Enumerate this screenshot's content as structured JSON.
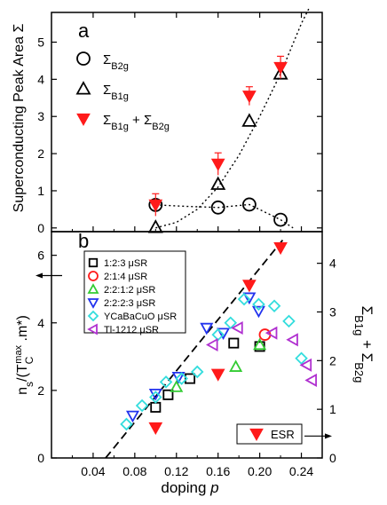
{
  "chart_data": [
    {
      "panel": "a",
      "type": "scatter",
      "panel_label": "a",
      "ylabel": "Superconducting Peak Area Σ",
      "xlim": [
        0,
        0.26
      ],
      "ylim": [
        -0.1,
        5.8
      ],
      "yticks": [
        0,
        1,
        2,
        3,
        4,
        5
      ],
      "series": [
        {
          "name": "Σ_B2g",
          "label": {
            "main": "Σ",
            "sub": "B2g"
          },
          "marker": "circle",
          "color": "#000000",
          "x": [
            0.1,
            0.16,
            0.19,
            0.22
          ],
          "y": [
            0.62,
            0.55,
            0.63,
            0.22
          ]
        },
        {
          "name": "Σ_B1g",
          "label": {
            "main": "Σ",
            "sub": "B1g"
          },
          "marker": "triangle-up",
          "color": "#000000",
          "x": [
            0.1,
            0.16,
            0.19,
            0.22
          ],
          "y": [
            0.02,
            1.18,
            2.88,
            4.15
          ]
        },
        {
          "name": "Σ_B1g + Σ_B2g",
          "label": {
            "main": "Σ",
            "sub": "B1g",
            "plus": "+ Σ",
            "sub2": "B2g"
          },
          "marker": "triangle-down-filled",
          "color": "#ff1a1a",
          "x": [
            0.1,
            0.16,
            0.19,
            0.22
          ],
          "y": [
            0.62,
            1.72,
            3.55,
            4.32
          ],
          "yerr": [
            0.3,
            0.3,
            0.25,
            0.3
          ]
        }
      ],
      "guides": [
        {
          "style": "dotted",
          "x": [
            0.1,
            0.13,
            0.16,
            0.19,
            0.22,
            0.232
          ],
          "y": [
            0.62,
            0.58,
            0.55,
            0.63,
            0.22,
            0.0
          ]
        },
        {
          "style": "dotted",
          "x": [
            0.1,
            0.12,
            0.14,
            0.16,
            0.18,
            0.2,
            0.22,
            0.24,
            0.248
          ],
          "y": [
            0.0,
            0.15,
            0.5,
            1.1,
            1.95,
            3.0,
            4.15,
            5.5,
            5.95
          ]
        }
      ]
    },
    {
      "panel": "b",
      "type": "scatter",
      "panel_label": "b",
      "xlabel": "doping p",
      "ylabel_left": "n_s/(T_C^max .m*)",
      "ylabel_right": "Σ_B1g + Σ_B2g",
      "xlim": [
        0,
        0.26
      ],
      "ylim_left": [
        0,
        6.7
      ],
      "ylim_right": [
        0,
        4.65
      ],
      "xticks": [
        "0.04",
        "0.08",
        "0.12",
        "0.16",
        "0.20",
        "0.24"
      ],
      "xtick_values": [
        0.04,
        0.08,
        0.12,
        0.16,
        0.2,
        0.24
      ],
      "yticks_left": [
        0,
        2,
        4,
        6
      ],
      "yticks_right": [
        0,
        1,
        2,
        3,
        4
      ],
      "legend_position": "top-left",
      "series": [
        {
          "name": "1:2:3 μSR",
          "legend": "1:2:3   μSR",
          "marker": "square",
          "color": "#000000",
          "x": [
            0.1,
            0.112,
            0.133,
            0.175,
            0.2
          ],
          "y": [
            1.5,
            1.87,
            2.35,
            3.4,
            3.3
          ]
        },
        {
          "name": "2:1:4 μSR",
          "legend": "2:1:4   μSR",
          "marker": "circle",
          "color": "#ff1a1a",
          "x": [
            0.205
          ],
          "y": [
            3.65
          ]
        },
        {
          "name": "2:2:1:2 μSR",
          "legend": "2:2:1:2 μSR",
          "marker": "triangle-up",
          "color": "#33cc33",
          "x": [
            0.12,
            0.177,
            0.2
          ],
          "y": [
            2.1,
            2.7,
            3.35
          ]
        },
        {
          "name": "2:2:2:3 μSR",
          "legend": "2:2:2:3 μSR",
          "marker": "triangle-down",
          "color": "#2233ee",
          "x": [
            0.078,
            0.1,
            0.122,
            0.149,
            0.165,
            0.19,
            0.199
          ],
          "y": [
            1.25,
            1.9,
            2.4,
            3.85,
            3.7,
            4.75,
            4.35
          ]
        },
        {
          "name": "YCaBaCuO μSR",
          "legend": "YCaBaCuO μSR",
          "marker": "diamond",
          "color": "#33dddd",
          "x": [
            0.072,
            0.087,
            0.1,
            0.11,
            0.125,
            0.14,
            0.16,
            0.172,
            0.185,
            0.199,
            0.214,
            0.228,
            0.24
          ],
          "y": [
            1.0,
            1.55,
            1.8,
            2.25,
            2.35,
            2.55,
            3.65,
            4.0,
            4.7,
            4.55,
            4.5,
            4.05,
            2.95
          ]
        },
        {
          "name": "Tl-1212 μSR",
          "legend": "Tl-1212 μSR",
          "marker": "triangle-left",
          "color": "#b030d0",
          "x": [
            0.155,
            0.179,
            0.212,
            0.232,
            0.245,
            0.25
          ],
          "y": [
            3.35,
            3.85,
            3.7,
            3.5,
            2.75,
            2.3
          ]
        },
        {
          "name": "ESR",
          "legend": "ESR",
          "marker": "triangle-down-filled",
          "color": "#ff1a1a",
          "axis": "right",
          "x": [
            0.1,
            0.16,
            0.19,
            0.22
          ],
          "y": [
            0.62,
            1.72,
            3.55,
            4.32
          ]
        }
      ],
      "guides": [
        {
          "style": "dashed",
          "x": [
            0.052,
            0.222
          ],
          "y": [
            0.0,
            6.45
          ]
        }
      ],
      "arrows": [
        {
          "direction": "left",
          "axis": "left"
        },
        {
          "direction": "right",
          "axis": "right"
        }
      ]
    }
  ]
}
